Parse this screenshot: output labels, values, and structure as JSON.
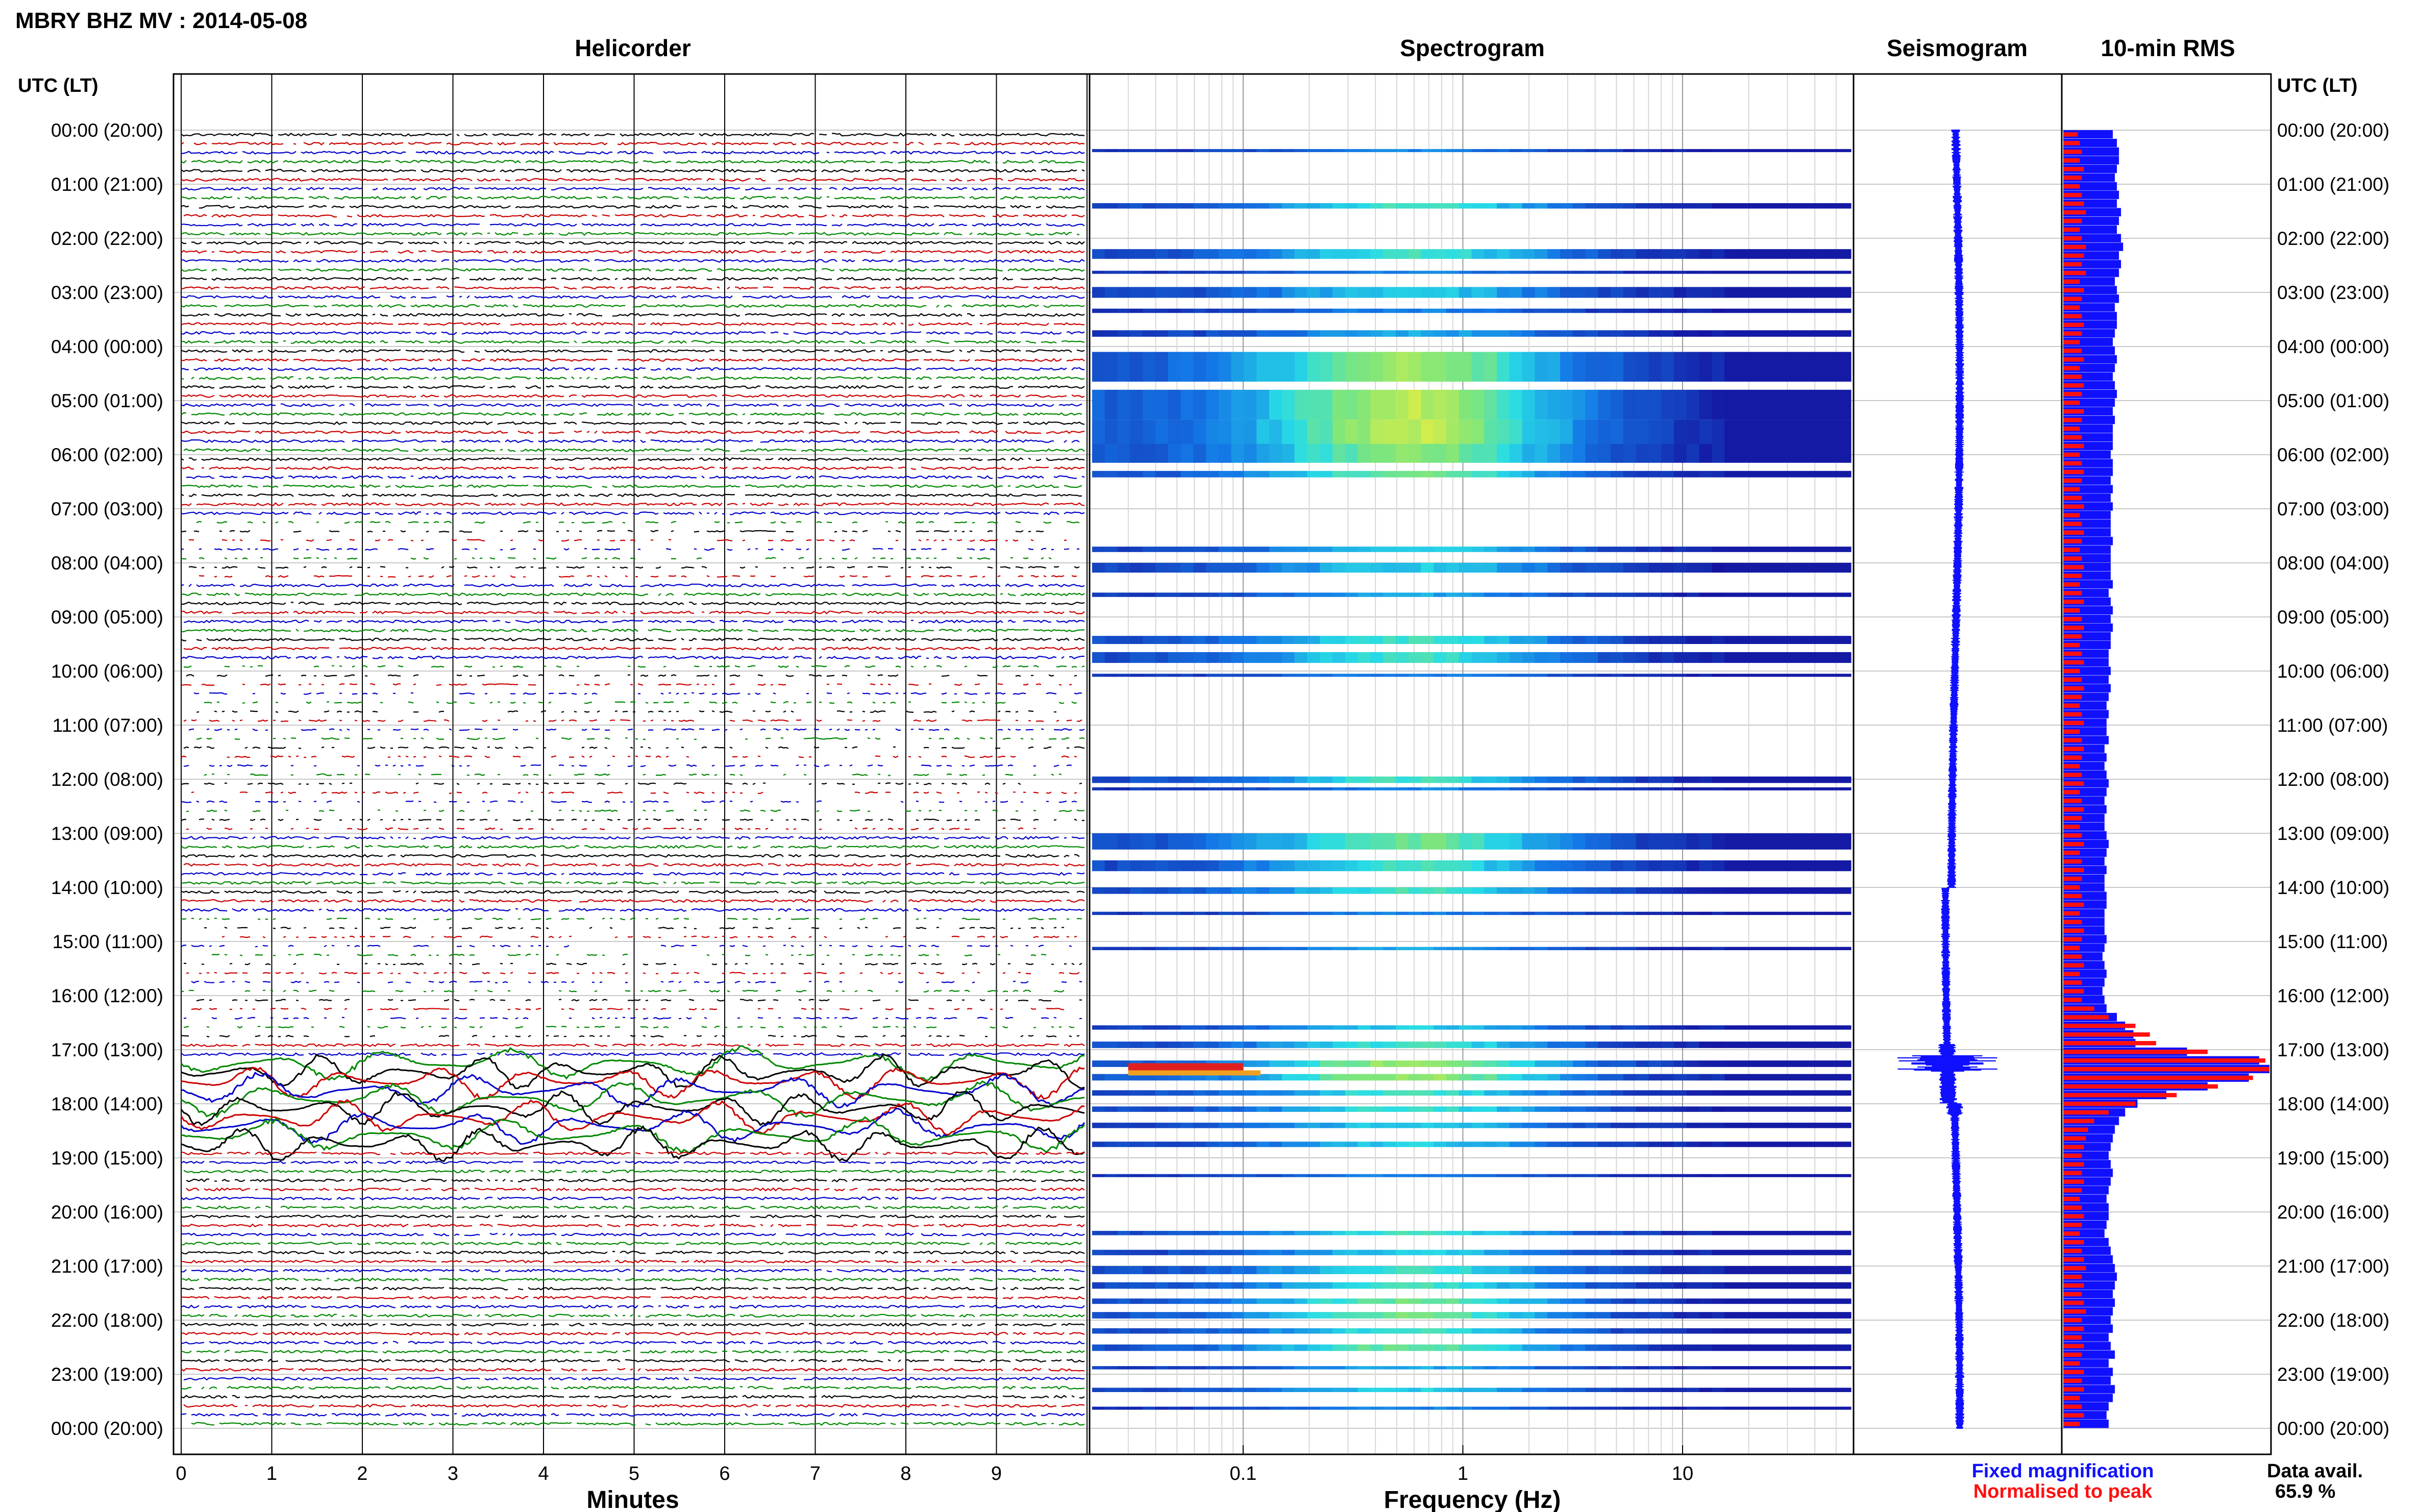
{
  "header": {
    "station_title": "MBRY BHZ MV : 2014-05-08",
    "utc_lt_label_left": "UTC (LT)",
    "utc_lt_label_right": "UTC (LT)"
  },
  "panels": {
    "helicorder_title": "Helicorder",
    "spectrogram_title": "Spectrogram",
    "seismogram_title": "Seismogram",
    "rms_title": "10-min RMS"
  },
  "time_labels": [
    "00:00 (20:00)",
    "01:00 (21:00)",
    "02:00 (22:00)",
    "03:00 (23:00)",
    "04:00 (00:00)",
    "05:00 (01:00)",
    "06:00 (02:00)",
    "07:00 (03:00)",
    "08:00 (04:00)",
    "09:00 (05:00)",
    "10:00 (06:00)",
    "11:00 (07:00)",
    "12:00 (08:00)",
    "13:00 (09:00)",
    "14:00 (10:00)",
    "15:00 (11:00)",
    "16:00 (12:00)",
    "17:00 (13:00)",
    "18:00 (14:00)",
    "19:00 (15:00)",
    "20:00 (16:00)",
    "21:00 (17:00)",
    "22:00 (18:00)",
    "23:00 (19:00)",
    "00:00 (20:00)"
  ],
  "helicorder_axis": {
    "xlabel": "Minutes",
    "ticks": [
      "0",
      "1",
      "2",
      "3",
      "4",
      "5",
      "6",
      "7",
      "8",
      "9"
    ],
    "trace_colors": [
      "#000000",
      "#cc0000",
      "#0000cc",
      "#008800"
    ]
  },
  "spectrogram_axis": {
    "xlabel": "Frequency (Hz)",
    "ticks": [
      "0.1",
      "1",
      "10"
    ]
  },
  "legend": {
    "fixed_label": "Fixed magnification",
    "normalised_label": "Normalised to peak",
    "fixed_color": "#1010ff",
    "normalised_color": "#ff1010",
    "data_avail_label": "Data avail.",
    "data_avail_value": "65.9 %"
  },
  "chart_data": {
    "type": "bar",
    "title": "10-min RMS",
    "ylabel": "UTC (LT)",
    "x_units": "relative RMS amplitude",
    "series": [
      {
        "name": "Fixed magnification",
        "color": "#1010ff",
        "values": [
          0.24,
          0.26,
          0.27,
          0.27,
          0.26,
          0.25,
          0.26,
          0.27,
          0.26,
          0.28,
          0.27,
          0.26,
          0.28,
          0.29,
          0.27,
          0.28,
          0.27,
          0.25,
          0.26,
          0.27,
          0.25,
          0.26,
          0.26,
          0.25,
          0.24,
          0.25,
          0.26,
          0.25,
          0.24,
          0.25,
          0.26,
          0.25,
          0.24,
          0.25,
          0.24,
          0.24,
          0.24,
          0.23,
          0.24,
          0.24,
          0.23,
          0.24,
          0.23,
          0.24,
          0.23,
          0.23,
          0.23,
          0.24,
          0.23,
          0.23,
          0.23,
          0.23,
          0.24,
          0.22,
          0.23,
          0.24,
          0.23,
          0.24,
          0.23,
          0.23,
          0.22,
          0.22,
          0.23,
          0.22,
          0.23,
          0.22,
          0.21,
          0.22,
          0.21,
          0.21,
          0.22,
          0.2,
          0.21,
          0.2,
          0.21,
          0.22,
          0.21,
          0.2,
          0.21,
          0.2,
          0.2,
          0.21,
          0.22,
          0.21,
          0.2,
          0.21,
          0.2,
          0.2,
          0.21,
          0.21,
          0.2,
          0.2,
          0.2,
          0.21,
          0.2,
          0.19,
          0.2,
          0.21,
          0.2,
          0.19,
          0.2,
          0.21,
          0.26,
          0.3,
          0.34,
          0.35,
          0.6,
          0.95,
          1.0,
          0.9,
          0.7,
          0.5,
          0.36,
          0.3,
          0.27,
          0.25,
          0.24,
          0.23,
          0.22,
          0.23,
          0.24,
          0.23,
          0.22,
          0.21,
          0.22,
          0.22,
          0.21,
          0.2,
          0.22,
          0.23,
          0.24,
          0.25,
          0.26,
          0.25,
          0.24,
          0.25,
          0.24,
          0.23,
          0.24,
          0.22,
          0.23,
          0.25,
          0.22,
          0.24,
          0.23,
          0.25,
          0.24,
          0.22,
          0.21,
          0.22
        ]
      },
      {
        "name": "Normalised to peak",
        "color": "#ff1010",
        "values": [
          0.07,
          0.08,
          0.09,
          0.08,
          0.1,
          0.09,
          0.08,
          0.09,
          0.1,
          0.11,
          0.09,
          0.08,
          0.09,
          0.11,
          0.1,
          0.09,
          0.11,
          0.08,
          0.1,
          0.09,
          0.08,
          0.09,
          0.1,
          0.09,
          0.08,
          0.09,
          0.1,
          0.08,
          0.09,
          0.1,
          0.09,
          0.08,
          0.1,
          0.09,
          0.08,
          0.09,
          0.1,
          0.08,
          0.09,
          0.1,
          0.09,
          0.08,
          0.09,
          0.1,
          0.08,
          0.09,
          0.1,
          0.09,
          0.08,
          0.09,
          0.1,
          0.09,
          0.08,
          0.09,
          0.1,
          0.08,
          0.09,
          0.1,
          0.09,
          0.08,
          0.09,
          0.1,
          0.08,
          0.09,
          0.1,
          0.09,
          0.08,
          0.09,
          0.1,
          0.08,
          0.09,
          0.1,
          0.09,
          0.08,
          0.09,
          0.1,
          0.08,
          0.09,
          0.1,
          0.09,
          0.08,
          0.09,
          0.1,
          0.08,
          0.09,
          0.1,
          0.09,
          0.08,
          0.09,
          0.1,
          0.08,
          0.09,
          0.1,
          0.09,
          0.08,
          0.09,
          0.1,
          0.08,
          0.09,
          0.1,
          0.09,
          0.15,
          0.22,
          0.35,
          0.42,
          0.45,
          0.7,
          0.98,
          1.0,
          0.92,
          0.75,
          0.55,
          0.35,
          0.22,
          0.15,
          0.12,
          0.11,
          0.1,
          0.09,
          0.1,
          0.09,
          0.1,
          0.09,
          0.08,
          0.09,
          0.1,
          0.09,
          0.08,
          0.1,
          0.09,
          0.1,
          0.11,
          0.09,
          0.1,
          0.09,
          0.1,
          0.11,
          0.09,
          0.1,
          0.09,
          0.1,
          0.09,
          0.08,
          0.1,
          0.09,
          0.1,
          0.08,
          0.09,
          0.1,
          0.08
        ]
      }
    ]
  }
}
